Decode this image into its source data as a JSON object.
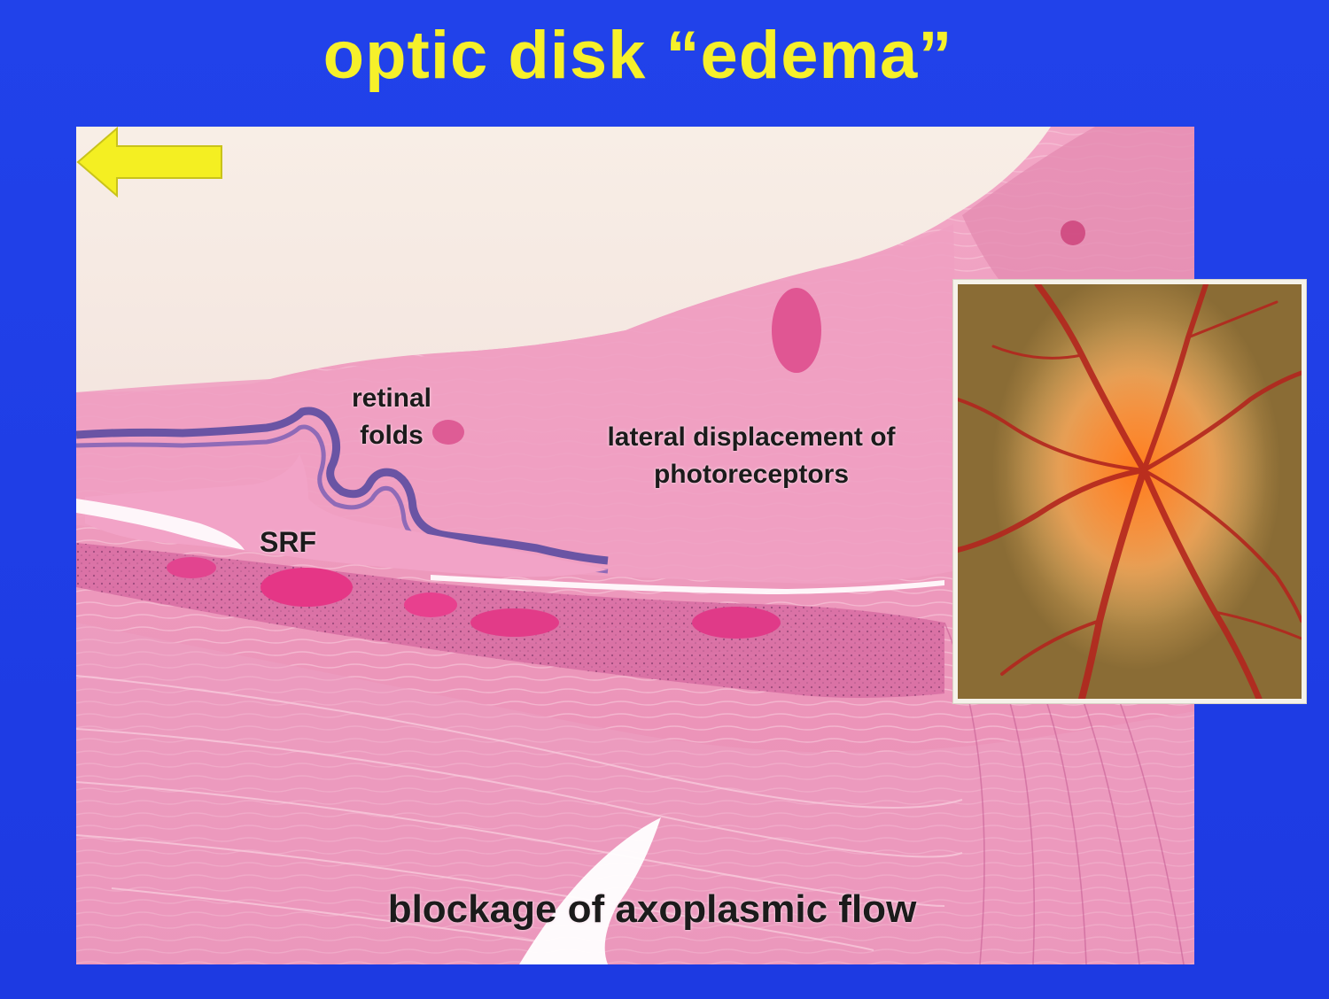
{
  "slide": {
    "title": "optic disk “edema”",
    "background_color": "#1f3de6",
    "title_color": "#f6f02a"
  },
  "histology_image": {
    "icon": "histology-section-image",
    "labels": {
      "retinal_folds_line1": "retinal",
      "retinal_folds_line2": "folds",
      "lateral_line1": "lateral displacement of",
      "lateral_line2": "photoreceptors",
      "srf": "SRF",
      "caption": "blockage of axoplasmic flow"
    },
    "arrow_color": "#f4ef22"
  },
  "fundus_image": {
    "icon": "fundus-photograph-image"
  }
}
